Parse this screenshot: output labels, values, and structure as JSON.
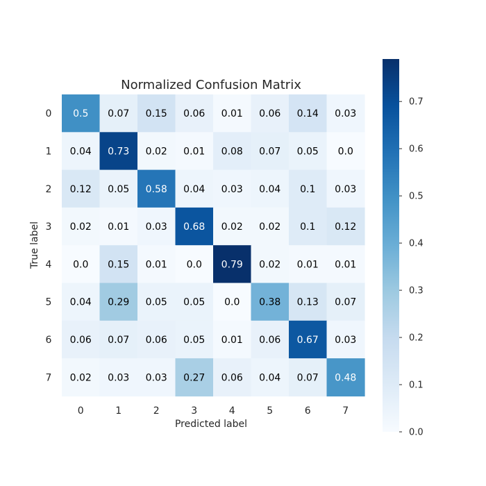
{
  "chart_data": {
    "type": "heatmap",
    "title": "Normalized Confusion Matrix",
    "xlabel": "Predicted label",
    "ylabel": "True label",
    "x_categories": [
      "0",
      "1",
      "2",
      "3",
      "4",
      "5",
      "6",
      "7"
    ],
    "y_categories": [
      "0",
      "1",
      "2",
      "3",
      "4",
      "5",
      "6",
      "7"
    ],
    "values": [
      [
        0.5,
        0.07,
        0.15,
        0.06,
        0.01,
        0.06,
        0.14,
        0.03
      ],
      [
        0.04,
        0.73,
        0.02,
        0.01,
        0.08,
        0.07,
        0.05,
        0.0
      ],
      [
        0.12,
        0.05,
        0.58,
        0.04,
        0.03,
        0.04,
        0.1,
        0.03
      ],
      [
        0.02,
        0.01,
        0.03,
        0.68,
        0.02,
        0.02,
        0.1,
        0.12
      ],
      [
        0.0,
        0.15,
        0.01,
        0.0,
        0.79,
        0.02,
        0.01,
        0.01
      ],
      [
        0.04,
        0.29,
        0.05,
        0.05,
        0.0,
        0.38,
        0.13,
        0.07
      ],
      [
        0.06,
        0.07,
        0.06,
        0.05,
        0.01,
        0.06,
        0.67,
        0.03
      ],
      [
        0.02,
        0.03,
        0.03,
        0.27,
        0.06,
        0.04,
        0.07,
        0.48
      ]
    ],
    "cell_labels": [
      [
        "0.5",
        "0.07",
        "0.15",
        "0.06",
        "0.01",
        "0.06",
        "0.14",
        "0.03"
      ],
      [
        "0.04",
        "0.73",
        "0.02",
        "0.01",
        "0.08",
        "0.07",
        "0.05",
        "0.0"
      ],
      [
        "0.12",
        "0.05",
        "0.58",
        "0.04",
        "0.03",
        "0.04",
        "0.1",
        "0.03"
      ],
      [
        "0.02",
        "0.01",
        "0.03",
        "0.68",
        "0.02",
        "0.02",
        "0.1",
        "0.12"
      ],
      [
        "0.0",
        "0.15",
        "0.01",
        "0.0",
        "0.79",
        "0.02",
        "0.01",
        "0.01"
      ],
      [
        "0.04",
        "0.29",
        "0.05",
        "0.05",
        "0.0",
        "0.38",
        "0.13",
        "0.07"
      ],
      [
        "0.06",
        "0.07",
        "0.06",
        "0.05",
        "0.01",
        "0.06",
        "0.67",
        "0.03"
      ],
      [
        "0.02",
        "0.03",
        "0.03",
        "0.27",
        "0.06",
        "0.04",
        "0.07",
        "0.48"
      ]
    ],
    "colormap": "Blues",
    "vmin": 0.0,
    "vmax": 0.79,
    "colorbar": {
      "ticks": [
        0.0,
        0.1,
        0.2,
        0.3,
        0.4,
        0.5,
        0.6,
        0.7
      ],
      "tick_labels": [
        "0.0",
        "0.1",
        "0.2",
        "0.3",
        "0.4",
        "0.5",
        "0.6",
        "0.7"
      ]
    },
    "grid": false,
    "text_color_dark": "#000000",
    "text_color_light": "#ffffff"
  }
}
